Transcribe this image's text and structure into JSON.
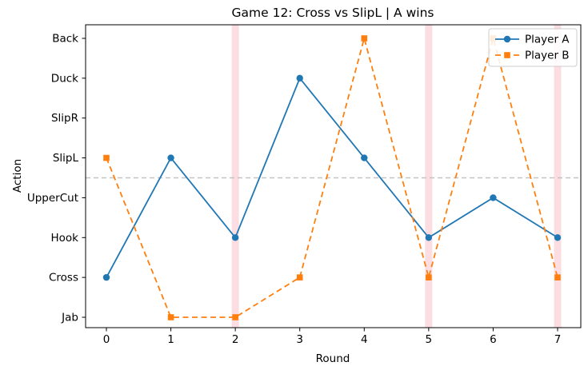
{
  "chart_data": {
    "type": "line",
    "title": "Game 12: Cross vs SlipL | A wins",
    "xlabel": "Round",
    "ylabel": "Action",
    "x": [
      0,
      1,
      2,
      3,
      4,
      5,
      6,
      7
    ],
    "x_tick_labels": [
      "0",
      "1",
      "2",
      "3",
      "4",
      "5",
      "6",
      "7"
    ],
    "y_categories": [
      "Jab",
      "Cross",
      "Hook",
      "UpperCut",
      "SlipL",
      "SlipR",
      "Duck",
      "Back"
    ],
    "series": [
      {
        "name": "Player A",
        "color": "#1f77b4",
        "marker": "circle",
        "linestyle": "solid",
        "actions": [
          "Cross",
          "SlipL",
          "Hook",
          "Duck",
          "SlipL",
          "Hook",
          "UpperCut",
          "Hook"
        ]
      },
      {
        "name": "Player B",
        "color": "#ff7f0e",
        "marker": "square",
        "linestyle": "dashed",
        "actions": [
          "SlipL",
          "Jab",
          "Jab",
          "Cross",
          "Back",
          "Cross",
          "Back",
          "Cross"
        ]
      }
    ],
    "highlighted_rounds": [
      2,
      5,
      7
    ],
    "highlight_color": "#fbdde2",
    "midline_y": 3.5,
    "midline_color": "#c4c4c4",
    "legend_position": "upper right",
    "xlim": [
      -0.35,
      7.35
    ],
    "grid": false
  }
}
